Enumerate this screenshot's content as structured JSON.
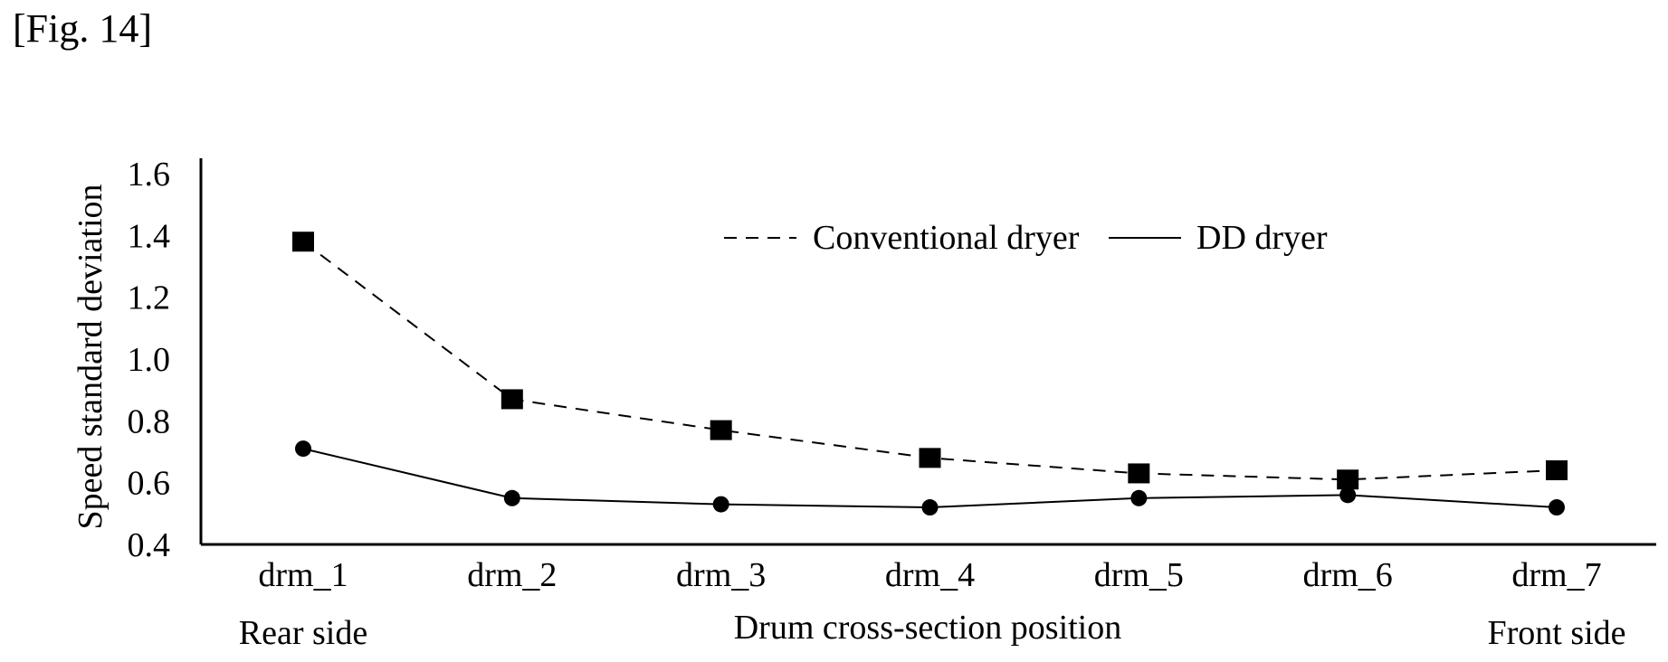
{
  "figure_label": "[Fig. 14]",
  "chart_data": {
    "type": "line",
    "xlabel": "Drum cross-section position",
    "ylabel": "Speed standard deviation",
    "categories": [
      "drm_1",
      "drm_2",
      "drm_3",
      "drm_4",
      "drm_5",
      "drm_6",
      "drm_7"
    ],
    "category_sublabels": {
      "drm_1": "Rear side",
      "drm_7": "Front side"
    },
    "yticks": [
      "0.4",
      "0.6",
      "0.8",
      "1.0",
      "1.2",
      "1.4",
      "1.6"
    ],
    "ylim": [
      0.4,
      1.65
    ],
    "grid": false,
    "legend_position": "top-center",
    "series": [
      {
        "name": "Conventional dryer",
        "line_style": "dashed",
        "marker": "square",
        "values": [
          1.38,
          0.87,
          0.77,
          0.68,
          0.63,
          0.61,
          0.64
        ]
      },
      {
        "name": "DD dryer",
        "line_style": "solid",
        "marker": "circle",
        "values": [
          0.71,
          0.55,
          0.53,
          0.52,
          0.55,
          0.56,
          0.52
        ]
      }
    ],
    "colors": {
      "line": "#000000",
      "background": "#ffffff"
    }
  }
}
